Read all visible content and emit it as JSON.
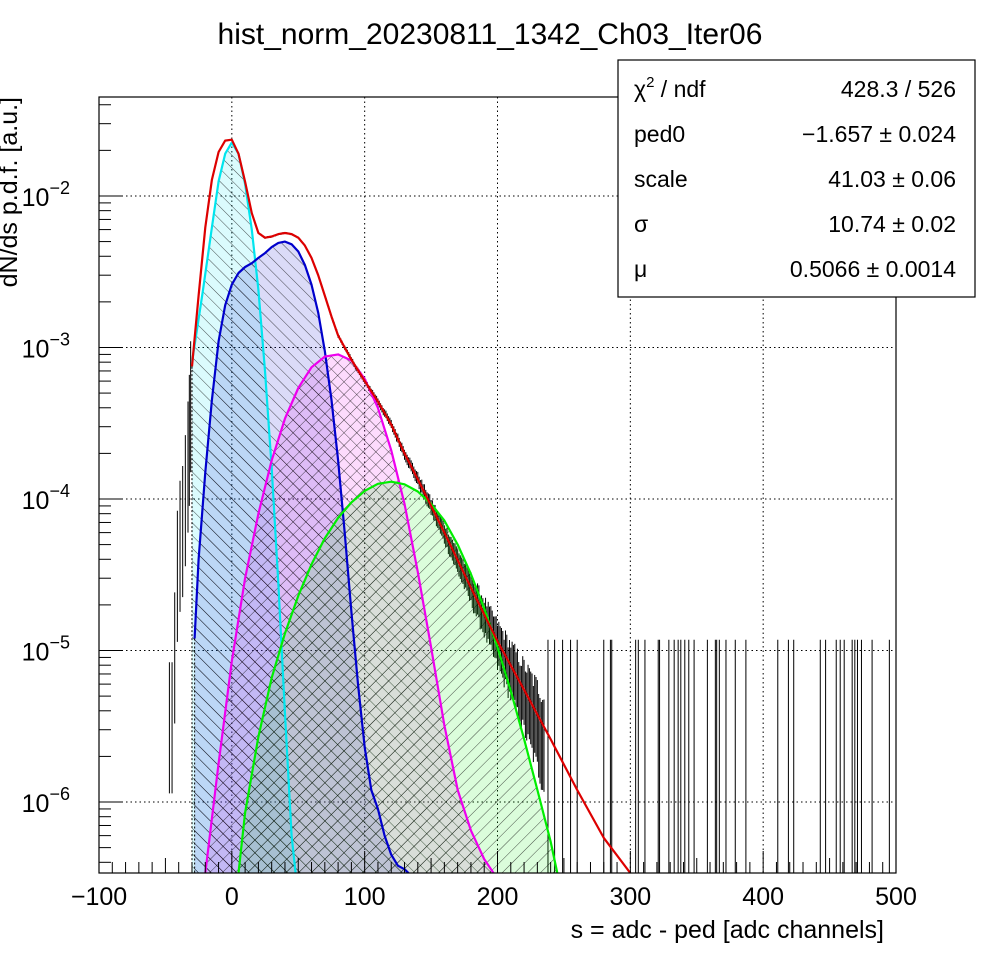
{
  "chart_data": {
    "type": "line",
    "title": "hist_norm_20230811_1342_Ch03_Iter06",
    "xlabel": "s = adc - ped [adc channels]",
    "ylabel": "dN/ds p.d.f. [a.u.]",
    "xlim": [
      -100,
      500
    ],
    "ylim": [
      3.4e-07,
      0.045
    ],
    "yscale": "log",
    "grid": true,
    "x_ticks": [
      {
        "value": -100,
        "label": "−100"
      },
      {
        "value": 0,
        "label": "0"
      },
      {
        "value": 100,
        "label": "100"
      },
      {
        "value": 200,
        "label": "200"
      },
      {
        "value": 300,
        "label": "300"
      },
      {
        "value": 400,
        "label": "400"
      },
      {
        "value": 500,
        "label": "500"
      }
    ],
    "y_ticks": [
      {
        "value": 1e-06,
        "base": "10",
        "exp": "−6"
      },
      {
        "value": 1e-05,
        "base": "10",
        "exp": "−5"
      },
      {
        "value": 0.0001,
        "base": "10",
        "exp": "−4"
      },
      {
        "value": 0.001,
        "base": "10",
        "exp": "−3"
      },
      {
        "value": 0.01,
        "base": "10",
        "exp": "−2"
      }
    ],
    "stats_box": {
      "placement": "top-right",
      "rows": [
        {
          "label_base": "χ",
          "label_sup": "2",
          "label_rest": " / ndf",
          "value": "428.3 / 526"
        },
        {
          "label_base": "ped0",
          "label_sup": "",
          "label_rest": "",
          "value": "−1.657 ± 0.024"
        },
        {
          "label_base": "scale",
          "label_sup": "",
          "label_rest": "",
          "value": "41.03 ± 0.06"
        },
        {
          "label_base": "σ",
          "label_sup": "",
          "label_rest": "",
          "value": "10.74 ± 0.02"
        },
        {
          "label_base": "μ",
          "label_sup": "",
          "label_rest": "",
          "value": "0.5066 ± 0.0014"
        }
      ]
    },
    "series": [
      {
        "color": "#00e5ee",
        "hatch": "back",
        "fill": true,
        "x": [
          -30,
          -22,
          -15,
          -10,
          -5,
          0,
          5,
          10,
          15,
          20,
          25,
          30,
          35,
          40,
          45,
          48
        ],
        "y": [
          0.0008,
          0.0023,
          0.0062,
          0.0125,
          0.019,
          0.0225,
          0.019,
          0.012,
          0.006,
          0.0024,
          0.0007,
          0.00016,
          2.8e-05,
          3.8e-06,
          6e-07,
          3.4e-07
        ]
      },
      {
        "color": "#0000cc",
        "hatch": "back",
        "fill": true,
        "x": [
          -28,
          -25,
          -20,
          -15,
          -10,
          -5,
          0,
          5,
          10,
          15,
          20,
          25,
          30,
          35,
          40,
          45,
          50,
          55,
          60,
          65,
          70,
          75,
          80,
          85,
          90,
          95,
          100,
          105,
          110,
          115,
          120,
          125,
          130,
          133
        ],
        "y": [
          1.2e-05,
          4e-05,
          0.00015,
          0.00045,
          0.0011,
          0.0019,
          0.0026,
          0.0031,
          0.0034,
          0.0036,
          0.0039,
          0.0042,
          0.0046,
          0.0049,
          0.005,
          0.0048,
          0.0043,
          0.0035,
          0.0026,
          0.0017,
          0.00095,
          0.00045,
          0.00018,
          6e-05,
          1.8e-05,
          6e-06,
          2.3e-06,
          1.2e-06,
          9e-07,
          6e-07,
          4.5e-07,
          3.8e-07,
          3.6e-07,
          3.4e-07
        ]
      },
      {
        "color": "#ee00ee",
        "hatch": "both",
        "fill": true,
        "x": [
          -20,
          -10,
          0,
          10,
          20,
          30,
          40,
          50,
          60,
          70,
          80,
          90,
          100,
          110,
          120,
          130,
          140,
          150,
          160,
          170,
          180,
          190,
          197
        ],
        "y": [
          3.4e-07,
          1.8e-06,
          8.5e-06,
          3e-05,
          8e-05,
          0.00018,
          0.00034,
          0.00054,
          0.00074,
          0.00087,
          0.0009,
          0.00082,
          0.00062,
          0.0004,
          0.00021,
          9.3e-05,
          3.3e-05,
          1.05e-05,
          3.2e-06,
          1.2e-06,
          6.5e-07,
          4.2e-07,
          3.4e-07
        ]
      },
      {
        "color": "#00ee00",
        "hatch": "fwd",
        "fill": true,
        "x": [
          5,
          10,
          20,
          30,
          40,
          50,
          60,
          70,
          80,
          90,
          100,
          110,
          120,
          130,
          140,
          150,
          160,
          170,
          180,
          190,
          200,
          210,
          220,
          230,
          240,
          245
        ],
        "y": [
          3.4e-07,
          8.5e-07,
          2.7e-06,
          6.6e-06,
          1.3e-05,
          2.3e-05,
          3.7e-05,
          5.5e-05,
          7.5e-05,
          9.5e-05,
          0.000113,
          0.000126,
          0.00013,
          0.000125,
          0.000112,
          9.3e-05,
          7.2e-05,
          5e-05,
          3.2e-05,
          1.9e-05,
          1.05e-05,
          5.4e-06,
          2.6e-06,
          1.2e-06,
          5.5e-07,
          3.4e-07
        ]
      },
      {
        "color": "#dd0000",
        "hatch": "none",
        "fill": false,
        "x": [
          -30,
          -25,
          -20,
          -15,
          -10,
          -5,
          0,
          5,
          10,
          15,
          20,
          25,
          30,
          35,
          40,
          45,
          50,
          55,
          60,
          65,
          70,
          75,
          80,
          90,
          100,
          110,
          120,
          130,
          140,
          150,
          160,
          180,
          200,
          220,
          240,
          260,
          280,
          300
        ],
        "y": [
          0.00075,
          0.0022,
          0.0062,
          0.0128,
          0.0195,
          0.0232,
          0.0235,
          0.019,
          0.0124,
          0.0077,
          0.0057,
          0.0053,
          0.0054,
          0.0056,
          0.0057,
          0.0056,
          0.0053,
          0.0047,
          0.0039,
          0.003,
          0.0022,
          0.0016,
          0.0012,
          0.00083,
          0.0006,
          0.00044,
          0.00031,
          0.0002,
          0.000135,
          9e-05,
          6e-05,
          2.6e-05,
          1.15e-05,
          5.5e-06,
          2.6e-06,
          1.2e-06,
          5.8e-07,
          3.2e-07
        ]
      }
    ]
  }
}
